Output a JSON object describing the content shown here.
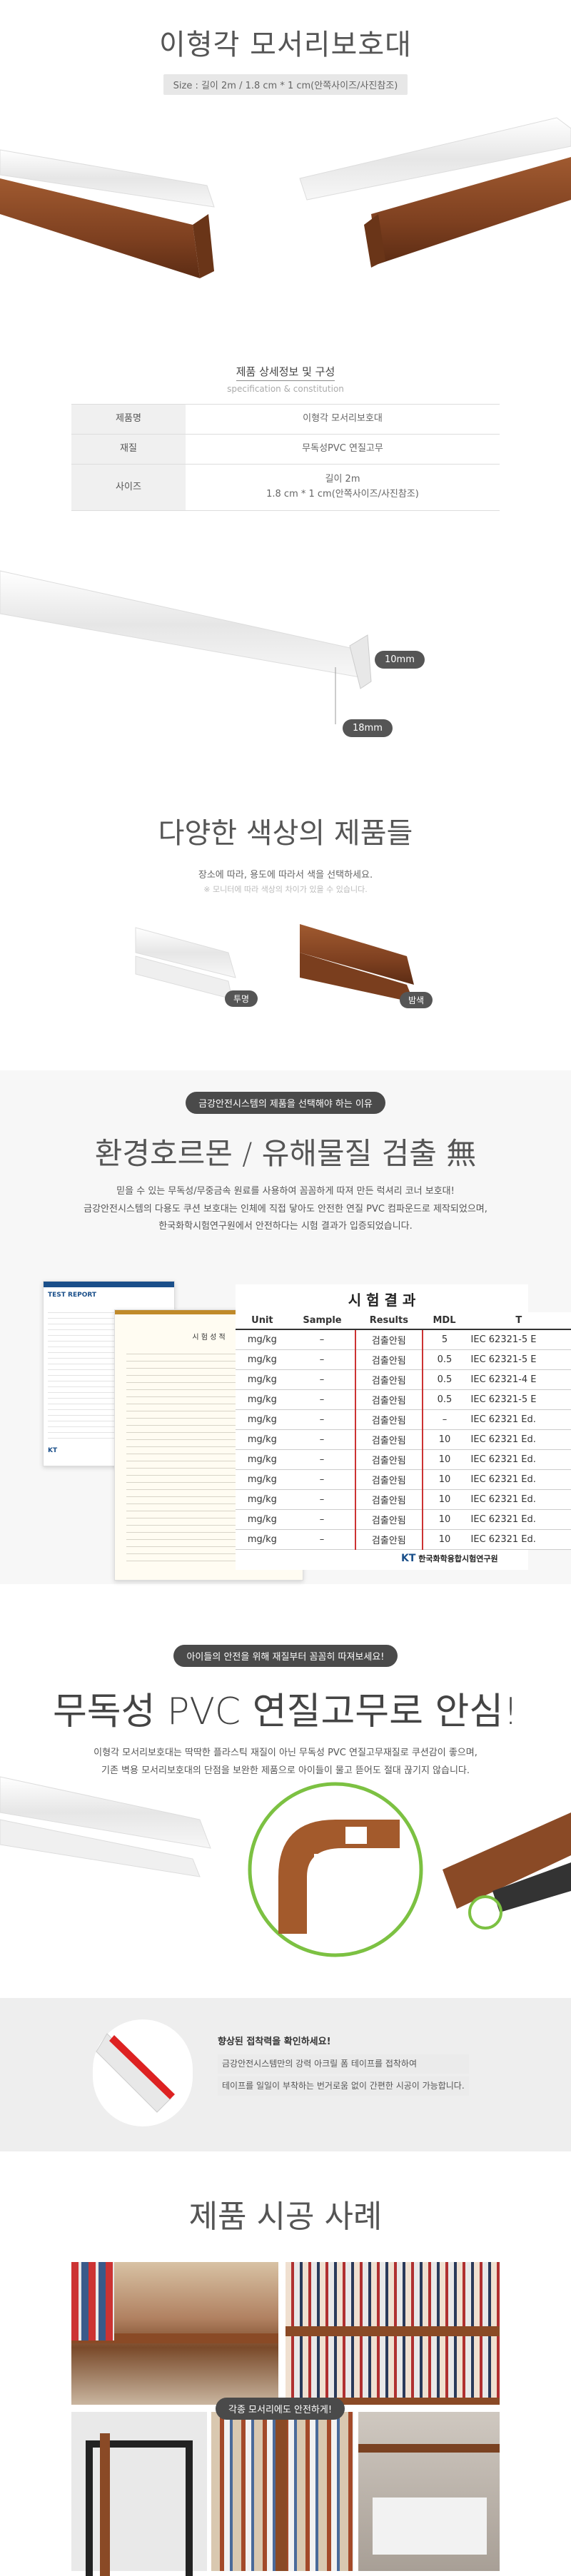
{
  "header": {
    "title": "이형각 모서리보호대",
    "size_label": "Size : 길이 2m / 1.8 cm * 1 cm(안쪽사이즈/사진참조)"
  },
  "spec": {
    "heading": "제품 상세정보 및 구성",
    "heading_en": "specification & constitution",
    "rows": [
      {
        "key": "제품명",
        "value": "이형각 모서리보호대"
      },
      {
        "key": "재질",
        "value": "무독성PVC 연질고무"
      },
      {
        "key": "사이즈",
        "value": "길이 2m",
        "value2": "1.8 cm * 1 cm(안쪽사이즈/사진참조)"
      }
    ]
  },
  "dimensions": {
    "width_label": "10mm",
    "height_label": "18mm"
  },
  "colors": {
    "title": "다양한 색상의 제품들",
    "subtitle": "장소에 따라, 용도에 따라서 색을 선택하세요.",
    "note": "※ 모니터에 따라 색상의 차이가 있을 수 있습니다.",
    "items": [
      {
        "label": "투명"
      },
      {
        "label": "밤색"
      }
    ]
  },
  "environment": {
    "tag": "금강안전시스템의 제품을 선택해야 하는 이유",
    "title": "환경호르몬 / 유해물질 검출 無",
    "lines": [
      "믿을 수 있는 무독성/무중금속 원료를 사용하여 꼼꼼하게 따져 만든 럭셔리 코너 보호대!",
      "금강안전시스템의 다용도 쿠션 보호대는 인체에 직접 닿아도 안전한 연질 PVC 컴파운드로 제작되었으며,",
      "한국화학시험연구원에서 안전하다는 시험 결과가 입증되었습니다."
    ],
    "doc_header": "TEST REPORT",
    "doc_inner": "시 험 성 적",
    "kt_label": "KT",
    "kt_org": "한국화학융합시험연구원",
    "results": {
      "title": "시 험 결 과",
      "columns": [
        "Unit",
        "Sample",
        "Results",
        "MDL",
        "T"
      ],
      "rows": [
        {
          "unit": "mg/kg",
          "sample": "–",
          "result": "검출안됨",
          "mdl": "5",
          "std": "IEC 62321-5 E"
        },
        {
          "unit": "mg/kg",
          "sample": "–",
          "result": "검출안됨",
          "mdl": "0.5",
          "std": "IEC 62321-5 E"
        },
        {
          "unit": "mg/kg",
          "sample": "–",
          "result": "검출안됨",
          "mdl": "0.5",
          "std": "IEC 62321-4 E"
        },
        {
          "unit": "mg/kg",
          "sample": "–",
          "result": "검출안됨",
          "mdl": "0.5",
          "std": "IEC 62321-5 E"
        },
        {
          "unit": "mg/kg",
          "sample": "–",
          "result": "검출안됨",
          "mdl": "–",
          "std": "IEC 62321 Ed."
        },
        {
          "unit": "mg/kg",
          "sample": "–",
          "result": "검출안됨",
          "mdl": "10",
          "std": "IEC 62321 Ed."
        },
        {
          "unit": "mg/kg",
          "sample": "–",
          "result": "검출안됨",
          "mdl": "10",
          "std": "IEC 62321 Ed."
        },
        {
          "unit": "mg/kg",
          "sample": "–",
          "result": "검출안됨",
          "mdl": "10",
          "std": "IEC 62321 Ed."
        },
        {
          "unit": "mg/kg",
          "sample": "–",
          "result": "검출안됨",
          "mdl": "10",
          "std": "IEC 62321 Ed."
        },
        {
          "unit": "mg/kg",
          "sample": "–",
          "result": "검출안됨",
          "mdl": "10",
          "std": "IEC 62321 Ed."
        },
        {
          "unit": "mg/kg",
          "sample": "–",
          "result": "검출안됨",
          "mdl": "10",
          "std": "IEC 62321 Ed."
        }
      ],
      "footer": "한국화학융합시험연구원"
    }
  },
  "safety": {
    "tag": "아이들의 안전을 위해 재질부터 꼼꼼히 따져보세요!",
    "title": "무독성 PVC 연질고무로 안심!",
    "lines": [
      "이형각 모서리보호대는 딱딱한 플라스틱 재질이 아닌 무독성 PVC 연질고무재질로 쿠션감이 좋으며,",
      "기존 벽용 모서리보호대의 단점을 보완한 제품으로 아이들이 물고 뜯어도 절대 끊기지 않습니다."
    ]
  },
  "adhesive": {
    "title": "향상된 접착력을 확인하세요!",
    "lines": [
      "금강안전시스템만의 강력 아크릴 폼 테이프를 접착하여",
      "테이프를 일일이 부착하는 번거로움 없이 간편한 시공이 가능합니다."
    ]
  },
  "cases": {
    "title": "제품 시공 사례",
    "tag": "각종 모서리에도 안전하게!"
  },
  "colors_hex": {
    "brown": "#8a4a26",
    "accent_green": "#7cc142",
    "result_red": "#cc3333"
  }
}
